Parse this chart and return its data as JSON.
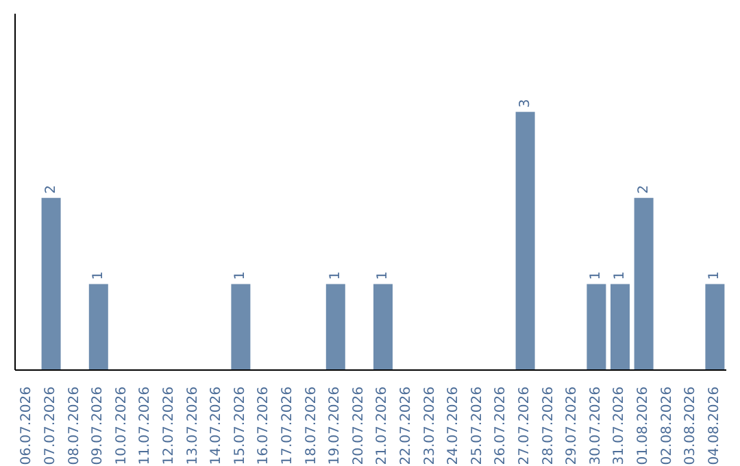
{
  "chart_data": {
    "type": "bar",
    "categories": [
      "06.07.2026",
      "07.07.2026",
      "08.07.2026",
      "09.07.2026",
      "10.07.2026",
      "11.07.2026",
      "12.07.2026",
      "13.07.2026",
      "14.07.2026",
      "15.07.2026",
      "16.07.2026",
      "17.07.2026",
      "18.07.2026",
      "19.07.2026",
      "20.07.2026",
      "21.07.2026",
      "22.07.2026",
      "23.07.2026",
      "24.07.2026",
      "25.07.2026",
      "26.07.2026",
      "27.07.2026",
      "28.07.2026",
      "29.07.2026",
      "30.07.2026",
      "31.07.2026",
      "01.08.2026",
      "02.08.2026",
      "03.08.2026",
      "04.08.2026"
    ],
    "values": [
      0,
      2,
      0,
      1,
      0,
      0,
      0,
      0,
      0,
      1,
      0,
      0,
      0,
      1,
      0,
      1,
      0,
      0,
      0,
      0,
      0,
      3,
      0,
      0,
      1,
      1,
      2,
      0,
      0,
      1
    ],
    "value_labels": [
      null,
      "2",
      null,
      "1",
      null,
      null,
      null,
      null,
      null,
      "1",
      null,
      null,
      null,
      "1",
      null,
      "1",
      null,
      null,
      null,
      null,
      null,
      "3",
      null,
      null,
      "1",
      "1",
      "2",
      null,
      null,
      "1"
    ],
    "color": "#6d8cae",
    "tick_labels": "x",
    "grid": false,
    "legend": false
  }
}
